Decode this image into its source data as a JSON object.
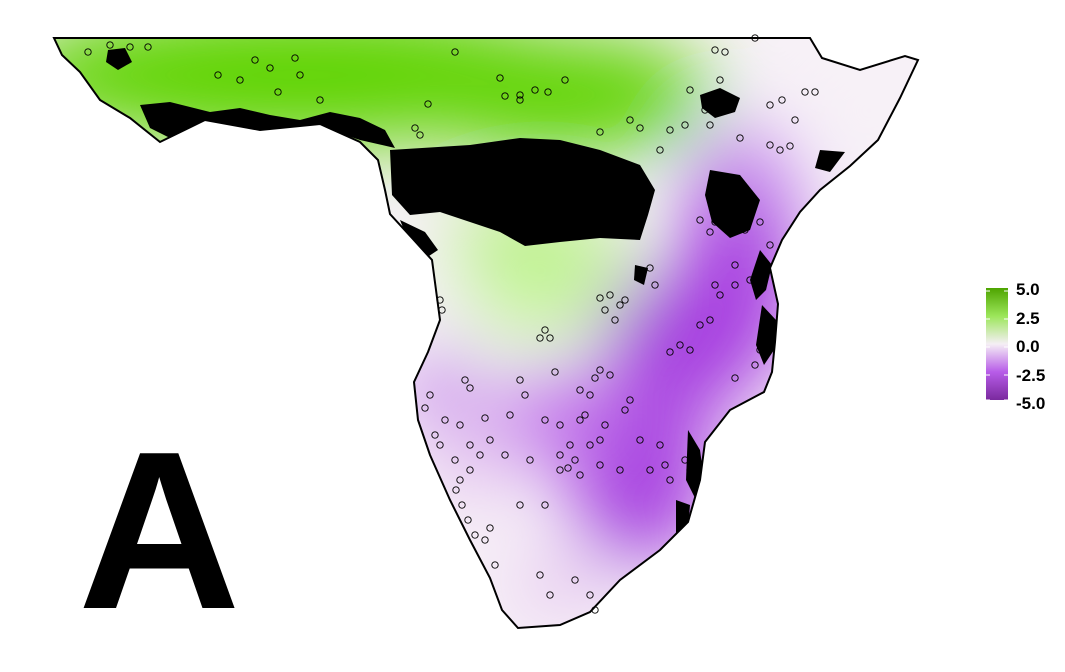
{
  "panel_label": "A",
  "legend": {
    "ticks": [
      "5.0",
      "2.5",
      "0.0",
      "-2.5",
      "-5.0"
    ],
    "colors": [
      "#4ea400",
      "#9ce65a",
      "#f5eff5",
      "#b75ce8",
      "#7a2a9e"
    ]
  },
  "colors": {
    "green_strong": "#5fd400",
    "green_light": "#c8f5a0",
    "neutral": "#f7f1f7",
    "purple_light": "#e6c7f0",
    "purple_strong": "#a63de0",
    "mask": "#000000"
  },
  "map": {
    "region": "southern and central Africa",
    "point_marker": "open-circle"
  }
}
